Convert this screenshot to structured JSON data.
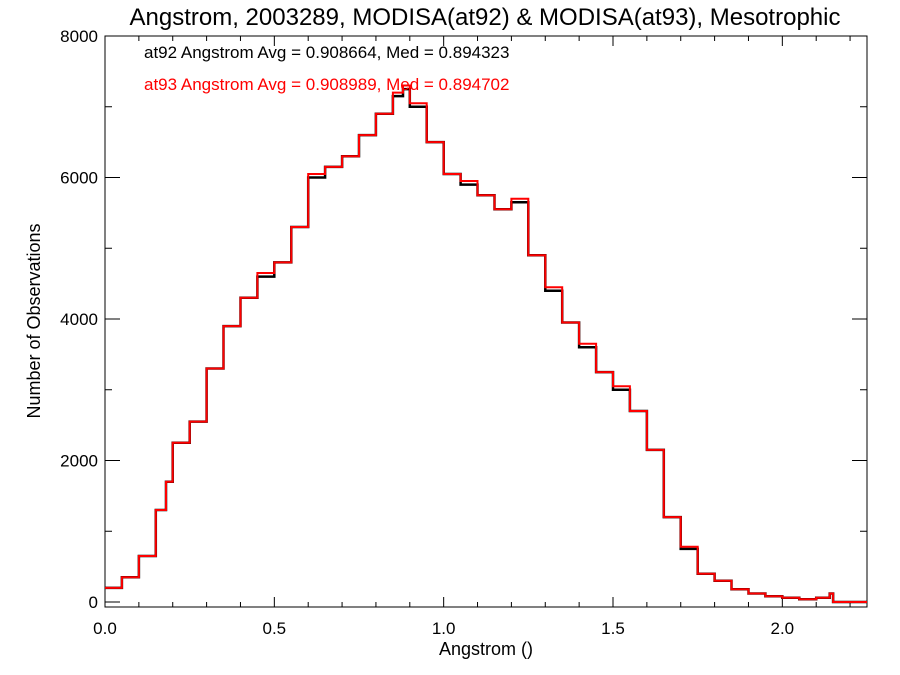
{
  "chart_data": {
    "type": "line",
    "title": "Angstrom, 2003289, MODISA(at92) & MODISA(at93), Mesotrophic",
    "xlabel": "Angstrom ()",
    "ylabel": "Number of Observations",
    "xlim": [
      0.0,
      2.25
    ],
    "ylim": [
      0,
      8000
    ],
    "x_ticks": [
      "0.0",
      "0.5",
      "1.0",
      "1.5",
      "2.0"
    ],
    "y_ticks": [
      "0",
      "2000",
      "4000",
      "6000",
      "8000"
    ],
    "grid": false,
    "step": true,
    "annotations": [
      {
        "text": "at92 Angstrom Avg = 0.908664, Med = 0.894323",
        "color": "#000000"
      },
      {
        "text": "at93 Angstrom Avg = 0.908989, Med = 0.894702",
        "color": "#ff0000"
      }
    ],
    "x": [
      0.0,
      0.05,
      0.1,
      0.15,
      0.18,
      0.2,
      0.25,
      0.3,
      0.35,
      0.4,
      0.45,
      0.5,
      0.55,
      0.6,
      0.65,
      0.7,
      0.75,
      0.8,
      0.85,
      0.88,
      0.9,
      0.95,
      1.0,
      1.05,
      1.1,
      1.15,
      1.2,
      1.25,
      1.3,
      1.35,
      1.4,
      1.45,
      1.5,
      1.55,
      1.6,
      1.65,
      1.7,
      1.75,
      1.8,
      1.85,
      1.9,
      1.95,
      2.0,
      2.05,
      2.1,
      2.14,
      2.15,
      2.25
    ],
    "series": [
      {
        "name": "at92",
        "color": "#000000",
        "values": [
          200,
          350,
          650,
          1300,
          1700,
          2250,
          2550,
          3300,
          3900,
          4300,
          4600,
          4800,
          5300,
          6000,
          6150,
          6300,
          6600,
          6900,
          7150,
          7250,
          7000,
          6500,
          6050,
          5900,
          5750,
          5550,
          5650,
          4900,
          4400,
          3950,
          3600,
          3250,
          3000,
          2700,
          2150,
          1200,
          750,
          400,
          300,
          180,
          120,
          80,
          60,
          40,
          60,
          120,
          0,
          0
        ]
      },
      {
        "name": "at93",
        "color": "#ff0000",
        "values": [
          200,
          350,
          650,
          1300,
          1700,
          2250,
          2550,
          3300,
          3900,
          4300,
          4650,
          4800,
          5300,
          6050,
          6150,
          6300,
          6600,
          6900,
          7200,
          7300,
          7050,
          6500,
          6050,
          5950,
          5750,
          5550,
          5700,
          4900,
          4450,
          3950,
          3650,
          3250,
          3050,
          2700,
          2150,
          1200,
          780,
          400,
          300,
          180,
          120,
          80,
          60,
          40,
          60,
          120,
          0,
          0
        ]
      }
    ]
  }
}
